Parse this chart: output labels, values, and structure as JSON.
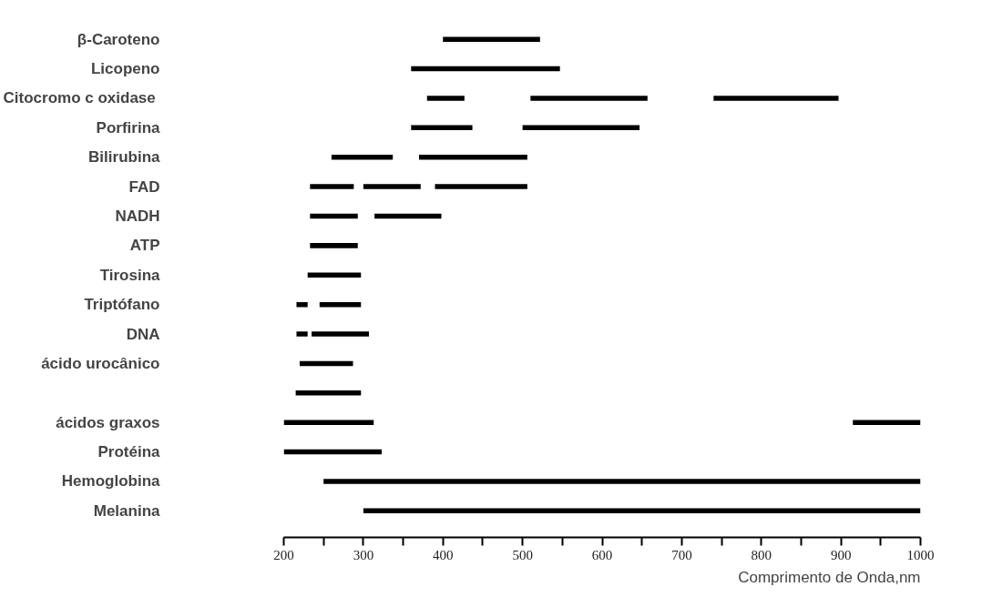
{
  "chart_data": {
    "type": "bar",
    "orientation": "horizontal",
    "categories": [
      "β-Caroteno",
      "Licopeno",
      "Citocromo  c oxidase",
      "Porfirina",
      "Bilirubina",
      "FAD",
      "NADH",
      "ATP",
      "Tirosina",
      "Triptófano",
      "DNA",
      "ácido urocânico",
      null,
      "ácidos graxos",
      "Protéina",
      "Hemoglobina",
      "Melanina"
    ],
    "series": [
      {
        "color": "#000000",
        "base": [
          400,
          360,
          380,
          360,
          260,
          233,
          233,
          233,
          230,
          216,
          216,
          220,
          215,
          200,
          200,
          250,
          300
        ],
        "values": [
          122,
          187,
          47,
          77,
          77,
          55,
          60,
          60,
          67,
          14,
          14,
          67,
          82,
          113,
          123,
          750,
          700
        ]
      },
      {
        "color": "#000000",
        "base": [
          null,
          null,
          510,
          500,
          370,
          300,
          314,
          null,
          null,
          245,
          235,
          null,
          null,
          915,
          null,
          null,
          null
        ],
        "values": [
          null,
          null,
          147,
          147,
          136,
          72,
          84,
          null,
          null,
          52,
          72,
          null,
          null,
          85,
          null,
          null,
          null
        ]
      },
      {
        "color": "#000000",
        "base": [
          null,
          null,
          740,
          null,
          null,
          390,
          null,
          null,
          null,
          null,
          null,
          null,
          null,
          null,
          null,
          null,
          null
        ],
        "values": [
          null,
          null,
          157,
          null,
          null,
          116,
          null,
          null,
          null,
          null,
          null,
          null,
          null,
          null,
          null,
          null,
          null
        ]
      }
    ],
    "xlabel": "Comprimento de Onda,nm",
    "xlim": [
      200,
      1000
    ],
    "xticks": [
      200,
      {
        "value": 250,
        "label": null
      },
      300,
      {
        "value": 350,
        "label": null
      },
      400,
      {
        "value": 450,
        "label": null
      },
      500,
      {
        "value": 550,
        "label": null
      },
      600,
      {
        "value": 650,
        "label": null
      },
      700,
      {
        "value": 750,
        "label": null
      },
      800,
      {
        "value": 850,
        "label": null
      },
      900,
      {
        "value": 950,
        "label": null
      },
      1000
    ],
    "grid": false
  }
}
